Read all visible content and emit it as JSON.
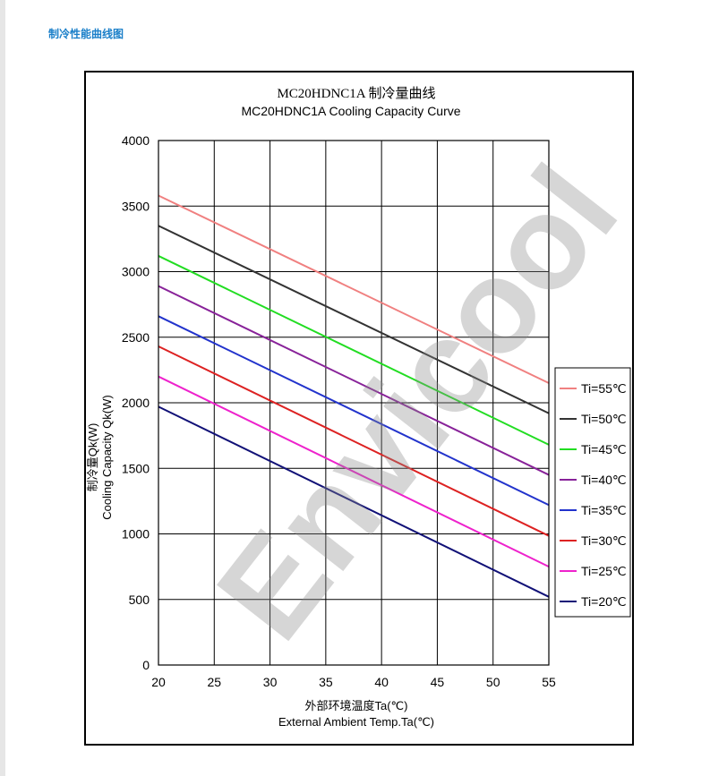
{
  "page": {
    "heading": "制冷性能曲线图"
  },
  "watermark": "Envicool",
  "colors": {
    "heading": "#1a7fc9"
  },
  "chart_data": {
    "type": "line",
    "title": "MC20HDNC1A 制冷量曲线",
    "subtitle": "MC20HDNC1A  Cooling Capacity Curve",
    "xlabel_cn": "外部环境温度Ta(℃)",
    "xlabel_en": "External Ambient Temp.Ta(℃)",
    "ylabel_cn": "制冷量Qk(W)",
    "ylabel_en": "Cooling Capacity Qk(W)",
    "xlim": [
      20,
      55
    ],
    "ylim": [
      0,
      4000
    ],
    "x_ticks": [
      20,
      25,
      30,
      35,
      40,
      45,
      50,
      55
    ],
    "y_ticks": [
      0,
      500,
      1000,
      1500,
      2000,
      2500,
      3000,
      3500,
      4000
    ],
    "grid": true,
    "legend_position": "right",
    "series": [
      {
        "name": "Ti=55℃",
        "color": "#f08080",
        "x": [
          20,
          55
        ],
        "y": [
          3580,
          2150
        ]
      },
      {
        "name": "Ti=50℃",
        "color": "#333333",
        "x": [
          20,
          55
        ],
        "y": [
          3350,
          1920
        ]
      },
      {
        "name": "Ti=45℃",
        "color": "#22dd22",
        "x": [
          20,
          55
        ],
        "y": [
          3120,
          1680
        ]
      },
      {
        "name": "Ti=40℃",
        "color": "#882299",
        "x": [
          20,
          55
        ],
        "y": [
          2890,
          1450
        ]
      },
      {
        "name": "Ti=35℃",
        "color": "#2233cc",
        "x": [
          20,
          55
        ],
        "y": [
          2660,
          1220
        ]
      },
      {
        "name": "Ti=30℃",
        "color": "#dd2222",
        "x": [
          20,
          55
        ],
        "y": [
          2430,
          985
        ]
      },
      {
        "name": "Ti=25℃",
        "color": "#ee22cc",
        "x": [
          20,
          55
        ],
        "y": [
          2200,
          750
        ]
      },
      {
        "name": "Ti=20℃",
        "color": "#111177",
        "x": [
          20,
          55
        ],
        "y": [
          1970,
          520
        ]
      }
    ]
  }
}
